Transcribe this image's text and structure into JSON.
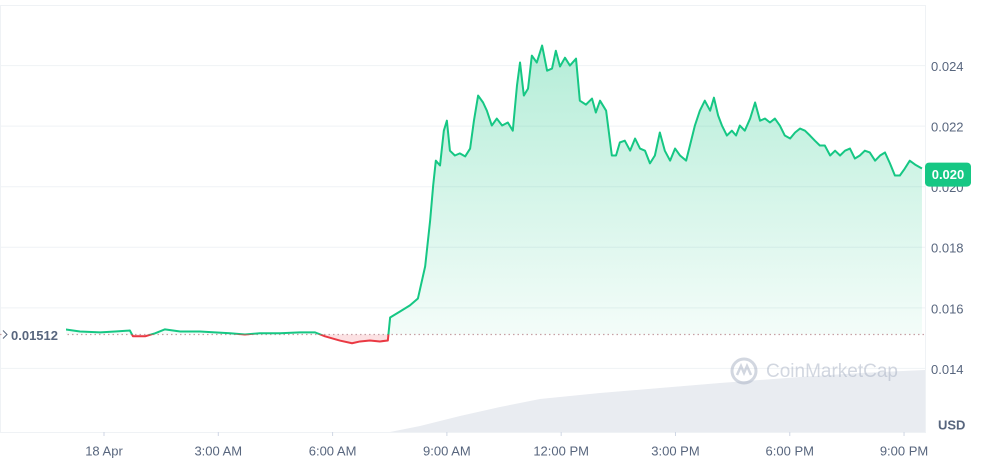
{
  "chart_data": {
    "type": "line",
    "x": [
      -1.02,
      -0.63,
      -0.1,
      0.29,
      0.68,
      0.76,
      1.08,
      1.34,
      1.6,
      2.0,
      2.52,
      2.91,
      3.31,
      3.7,
      4.09,
      4.62,
      5.14,
      5.54,
      5.8,
      6.19,
      6.51,
      6.72,
      6.98,
      7.24,
      7.45,
      7.51,
      7.77,
      8.03,
      8.24,
      8.43,
      8.56,
      8.64,
      8.71,
      8.82,
      8.92,
      9.0,
      9.08,
      9.21,
      9.34,
      9.48,
      9.61,
      9.71,
      9.82,
      9.95,
      10.05,
      10.18,
      10.31,
      10.45,
      10.6,
      10.73,
      10.84,
      10.92,
      11.02,
      11.13,
      11.23,
      11.36,
      11.5,
      11.63,
      11.76,
      11.86,
      11.97,
      12.1,
      12.23,
      12.39,
      12.49,
      12.65,
      12.81,
      12.91,
      13.02,
      13.18,
      13.33,
      13.44,
      13.54,
      13.67,
      13.81,
      13.94,
      14.07,
      14.2,
      14.33,
      14.46,
      14.59,
      14.72,
      14.86,
      14.99,
      15.12,
      15.28,
      15.38,
      15.51,
      15.64,
      15.77,
      15.91,
      16.01,
      16.12,
      16.22,
      16.35,
      16.48,
      16.59,
      16.69,
      16.82,
      16.96,
      17.09,
      17.22,
      17.35,
      17.48,
      17.61,
      17.74,
      17.87,
      18.01,
      18.14,
      18.27,
      18.4,
      18.53,
      18.66,
      18.79,
      18.92,
      19.06,
      19.19,
      19.32,
      19.45,
      19.58,
      19.71,
      19.84,
      19.97,
      20.1,
      20.24,
      20.37,
      20.5,
      20.63,
      20.76,
      20.89,
      21.02,
      21.15,
      21.29,
      21.47
    ],
    "values": [
      0.01529,
      0.01522,
      0.01519,
      0.01522,
      0.01525,
      0.01506,
      0.01506,
      0.01516,
      0.01529,
      0.01522,
      0.01522,
      0.01519,
      0.01516,
      0.01512,
      0.01516,
      0.01516,
      0.01519,
      0.01519,
      0.01506,
      0.01492,
      0.01483,
      0.01489,
      0.01492,
      0.01489,
      0.01492,
      0.01568,
      0.01588,
      0.01608,
      0.01631,
      0.01737,
      0.01888,
      0.02004,
      0.02086,
      0.0207,
      0.02185,
      0.02218,
      0.02119,
      0.02103,
      0.0211,
      0.021,
      0.02126,
      0.02218,
      0.02301,
      0.02278,
      0.02251,
      0.02202,
      0.02225,
      0.02202,
      0.02212,
      0.02185,
      0.02334,
      0.0241,
      0.02301,
      0.02324,
      0.02433,
      0.0241,
      0.02466,
      0.02383,
      0.0239,
      0.02449,
      0.02397,
      0.02426,
      0.024,
      0.02423,
      0.02284,
      0.02271,
      0.02291,
      0.02245,
      0.02284,
      0.02251,
      0.02103,
      0.02103,
      0.02146,
      0.02152,
      0.02119,
      0.02159,
      0.02126,
      0.02119,
      0.02077,
      0.02103,
      0.02179,
      0.02119,
      0.02086,
      0.02126,
      0.02103,
      0.02086,
      0.02136,
      0.02202,
      0.02251,
      0.02284,
      0.02251,
      0.02294,
      0.02235,
      0.02202,
      0.02169,
      0.02185,
      0.02169,
      0.02202,
      0.02185,
      0.02225,
      0.02278,
      0.02218,
      0.02225,
      0.02212,
      0.02225,
      0.02202,
      0.02169,
      0.02159,
      0.02179,
      0.02192,
      0.02185,
      0.02169,
      0.02152,
      0.02136,
      0.02136,
      0.02103,
      0.02119,
      0.02103,
      0.02119,
      0.02126,
      0.02093,
      0.02103,
      0.02119,
      0.02113,
      0.02086,
      0.02103,
      0.02113,
      0.02077,
      0.02037,
      0.02037,
      0.0206,
      0.02086,
      0.02073,
      0.0206
    ],
    "color": "#16c784",
    "below_color": "#ea3943",
    "baseline": 0.01512,
    "current_price": {
      "value": 0.0204,
      "label": "0.020"
    },
    "unit": "USD",
    "watermark": "CoinMarketCap",
    "xlim": [
      -2.73,
      21.55
    ],
    "xticks": [
      {
        "value": 0,
        "label": "18 Apr"
      },
      {
        "value": 3,
        "label": "3:00 AM"
      },
      {
        "value": 6,
        "label": "6:00 AM"
      },
      {
        "value": 9,
        "label": "9:00 AM"
      },
      {
        "value": 12,
        "label": "12:00 PM"
      },
      {
        "value": 15,
        "label": "3:00 PM"
      },
      {
        "value": 18,
        "label": "6:00 PM"
      },
      {
        "value": 21,
        "label": "9:00 PM"
      }
    ],
    "ylim": [
      0.0119,
      0.026
    ],
    "yticks": [
      0.014,
      0.016,
      0.018,
      {
        "value": 0.02,
        "label": "0.020"
      },
      0.022,
      0.024
    ],
    "grid": true
  }
}
